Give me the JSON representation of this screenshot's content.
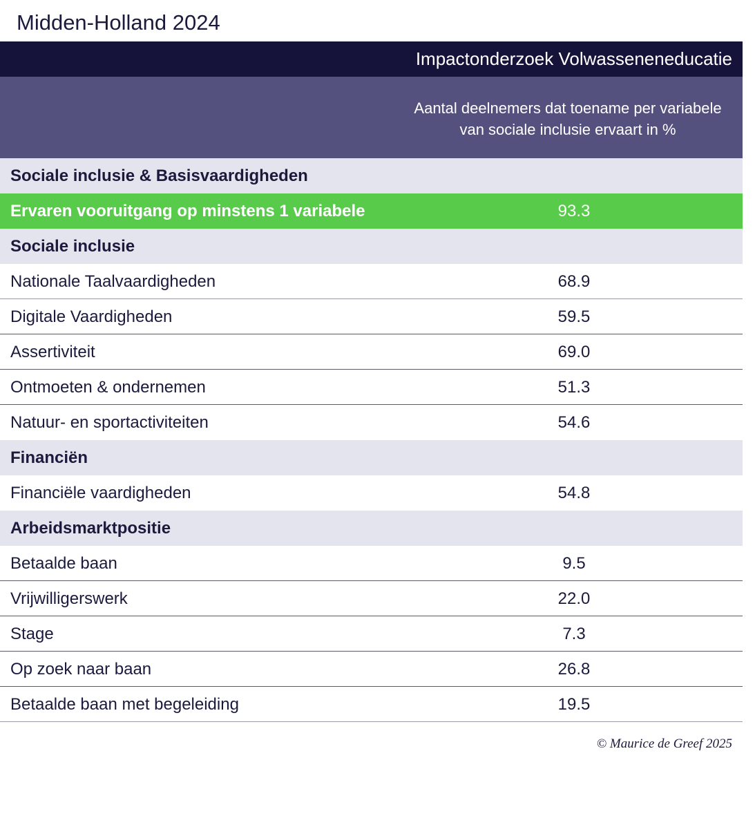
{
  "page_title": "Midden-Holland 2024",
  "copyright": "© Maurice de Greef 2025",
  "colors": {
    "title_bar": "#15133a",
    "header_band": "#55517f",
    "section_row": "#e4e4ee",
    "highlight_row": "#58cc4a",
    "text": "#1b1a3d"
  },
  "chart_data": {
    "type": "table",
    "title": "Impactonderzoek Volwasseneneducatie",
    "column_header": "Aantal deelnemers dat toename per variabele van sociale inclusie ervaart in %",
    "rows": [
      {
        "kind": "section",
        "label": "Sociale inclusie & Basisvaardigheden",
        "value": ""
      },
      {
        "kind": "highlight",
        "label": "Ervaren vooruitgang op minstens 1 variabele",
        "value": "93.3"
      },
      {
        "kind": "section",
        "label": "Sociale inclusie",
        "value": ""
      },
      {
        "kind": "item",
        "label": "Nationale Taalvaardigheden",
        "value": "68.9"
      },
      {
        "kind": "item",
        "label": "Digitale Vaardigheden",
        "value": "59.5"
      },
      {
        "kind": "item",
        "label": "Assertiviteit",
        "value": "69.0"
      },
      {
        "kind": "item",
        "label": "Ontmoeten & ondernemen",
        "value": "51.3"
      },
      {
        "kind": "item",
        "label": "Natuur- en sportactiviteiten",
        "value": "54.6"
      },
      {
        "kind": "section",
        "label": "Financiën",
        "value": ""
      },
      {
        "kind": "item",
        "label": "Financiële vaardigheden",
        "value": "54.8"
      },
      {
        "kind": "section",
        "label": "Arbeidsmarktpositie",
        "value": ""
      },
      {
        "kind": "item",
        "label": "Betaalde baan",
        "value": "9.5"
      },
      {
        "kind": "item",
        "label": "Vrijwilligerswerk",
        "value": "22.0"
      },
      {
        "kind": "item",
        "label": "Stage",
        "value": "7.3"
      },
      {
        "kind": "item",
        "label": "Op zoek naar baan",
        "value": "26.8"
      },
      {
        "kind": "item",
        "label": "Betaalde baan met begeleiding",
        "value": "19.5"
      }
    ]
  }
}
